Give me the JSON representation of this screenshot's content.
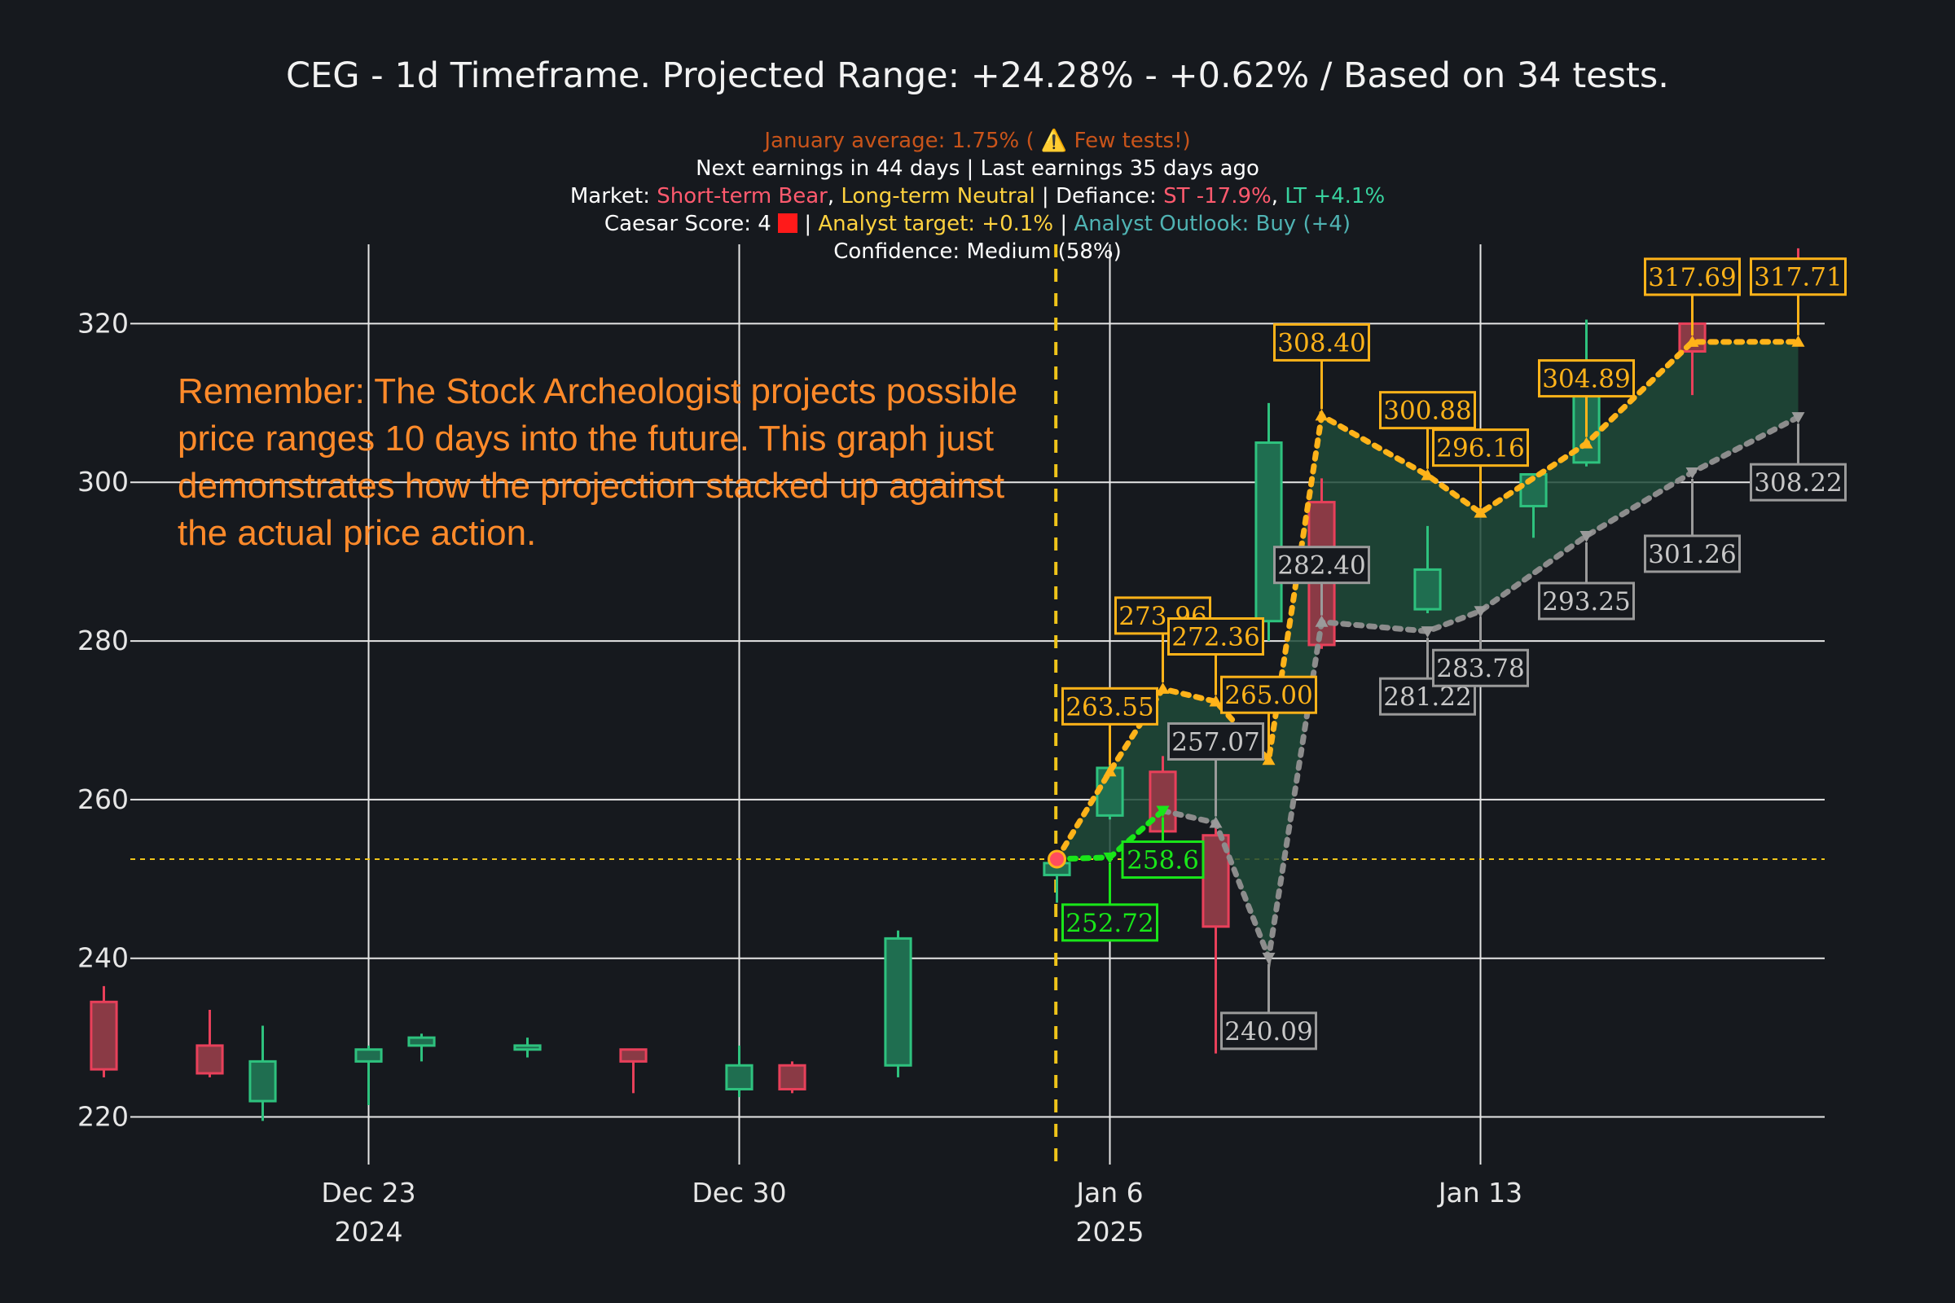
{
  "title": "CEG - 1d Timeframe. Projected Range: +24.28% - +0.62% / Based on 34 tests.",
  "subtitle": {
    "line1": {
      "text": "January average: 1.75% ( ⚠️ Few tests!)",
      "color": "#c9541a"
    },
    "line2": "Next earnings in 44 days | Last earnings 35 days ago",
    "line3": {
      "label": "Market: ",
      "short_term": "Short-term Bear",
      "sep1": ", ",
      "long_term": "Long-term Neutral",
      "sep2": " | Defiance: ",
      "st": "ST -17.9%",
      "sep3": ", ",
      "lt": "LT +4.1%"
    },
    "line4": {
      "caesar": "Caesar Score: 4",
      "sep1": " | ",
      "analyst_target": "Analyst target: +0.1%",
      "sep2": " | ",
      "analyst_outlook": "Analyst Outlook: Buy (+4)"
    },
    "line5": "Confidence: Medium (58%)"
  },
  "note": "Remember: The Stock Archeologist projects possible price ranges 10 days into the future. This graph just demonstrates how the projection stacked up against the actual price action.",
  "colors": {
    "background": "#16191e",
    "up": "#2ec27e",
    "up_fill": "#1f6e50",
    "down": "#e8405a",
    "down_fill": "#8a3a45",
    "upper_line": "#ffb319",
    "lower_line": "#8c8c8c",
    "base_line": "#19e619",
    "band_fill": "#1f4a38",
    "vline": "#f0c419",
    "bear": "#ff5a6e",
    "neutral": "#ffd23f",
    "st": "#ff5a6e",
    "lt": "#38d39f",
    "analyst_target": "#ffd23f",
    "analyst_outlook": "#4fb3b3"
  },
  "chart_data": {
    "type": "candlestick",
    "y_ticks": [
      "220",
      "240",
      "260",
      "280",
      "300",
      "320"
    ],
    "ylim": [
      214,
      330
    ],
    "x_ticks": [
      {
        "label": "Dec 23",
        "sub": "2024",
        "date": "2024-12-23"
      },
      {
        "label": "Dec 30",
        "sub": "",
        "date": "2024-12-30"
      },
      {
        "label": "Jan 6",
        "sub": "2025",
        "date": "2025-01-06"
      },
      {
        "label": "Jan 13",
        "sub": "",
        "date": "2025-01-13"
      }
    ],
    "xlim": [
      "2024-12-18T12:00",
      "2025-01-19T12:00"
    ],
    "current_price": 252.5,
    "projection_start": {
      "date": "2025-01-05",
      "price": 252.5
    },
    "candles": [
      {
        "date": "2024-12-18",
        "open": 234.5,
        "high": 236.5,
        "low": 225.0,
        "close": 226.0
      },
      {
        "date": "2024-12-20",
        "open": 229.0,
        "high": 233.5,
        "low": 225.0,
        "close": 225.5
      },
      {
        "date": "2024-12-21",
        "open": 222.0,
        "high": 231.5,
        "low": 219.5,
        "close": 227.0
      },
      {
        "date": "2024-12-23",
        "open": 227.0,
        "high": 229.0,
        "low": 221.5,
        "close": 228.5
      },
      {
        "date": "2024-12-24",
        "open": 229.0,
        "high": 230.5,
        "low": 227.0,
        "close": 230.0
      },
      {
        "date": "2024-12-26",
        "open": 228.5,
        "high": 230.0,
        "low": 227.5,
        "close": 229.0
      },
      {
        "date": "2024-12-28",
        "open": 228.5,
        "high": 228.5,
        "low": 223.0,
        "close": 227.0
      },
      {
        "date": "2024-12-30",
        "open": 223.5,
        "high": 229.0,
        "low": 222.5,
        "close": 226.5
      },
      {
        "date": "2024-12-31",
        "open": 226.5,
        "high": 227.0,
        "low": 223.0,
        "close": 223.5
      },
      {
        "date": "2025-01-02",
        "open": 226.5,
        "high": 243.5,
        "low": 225.0,
        "close": 242.5
      },
      {
        "date": "2025-01-05",
        "open": 250.5,
        "high": 253.0,
        "low": 247.0,
        "close": 252.0
      },
      {
        "date": "2025-01-06",
        "open": 258.0,
        "high": 264.5,
        "low": 257.5,
        "close": 264.0
      },
      {
        "date": "2025-01-07",
        "open": 263.5,
        "high": 265.5,
        "low": 255.0,
        "close": 256.0
      },
      {
        "date": "2025-01-08",
        "open": 255.5,
        "high": 256.5,
        "low": 228.0,
        "close": 244.0
      },
      {
        "date": "2025-01-09",
        "open": 282.5,
        "high": 310.0,
        "low": 280.0,
        "close": 305.0
      },
      {
        "date": "2025-01-10",
        "open": 297.5,
        "high": 300.5,
        "low": 279.0,
        "close": 279.5
      },
      {
        "date": "2025-01-12",
        "open": 284.0,
        "high": 294.5,
        "low": 283.5,
        "close": 289.0
      },
      {
        "date": "2025-01-14",
        "open": 297.0,
        "high": 301.0,
        "low": 293.0,
        "close": 301.0
      },
      {
        "date": "2025-01-15",
        "open": 302.5,
        "high": 320.5,
        "low": 302.0,
        "close": 312.0
      },
      {
        "date": "2025-01-17",
        "open": 320.0,
        "high": 320.5,
        "low": 311.0,
        "close": 316.5
      },
      {
        "date": "2025-01-19",
        "open": 324.5,
        "high": 329.5,
        "low": 323.5,
        "close": 324.0
      }
    ],
    "upper_projection": [
      {
        "date": "2025-01-05",
        "value": 252.5
      },
      {
        "date": "2025-01-06",
        "value": 263.55,
        "label": "263.55"
      },
      {
        "date": "2025-01-07",
        "value": 273.96,
        "label": "273.96"
      },
      {
        "date": "2025-01-08",
        "value": 272.36,
        "label": "272.36"
      },
      {
        "date": "2025-01-09",
        "value": 265.0,
        "label": "265.00"
      },
      {
        "date": "2025-01-10",
        "value": 308.4,
        "label": "308.40"
      },
      {
        "date": "2025-01-12",
        "value": 300.88,
        "label": "300.88"
      },
      {
        "date": "2025-01-13",
        "value": 296.16,
        "label": "296.16"
      },
      {
        "date": "2025-01-15",
        "value": 304.89,
        "label": "304.89"
      },
      {
        "date": "2025-01-17",
        "value": 317.69,
        "label": "317.69"
      },
      {
        "date": "2025-01-19",
        "value": 317.71,
        "label": "317.71"
      }
    ],
    "lower_projection": [
      {
        "date": "2025-01-05",
        "value": 252.5
      },
      {
        "date": "2025-01-06",
        "value": 252.72,
        "label": "252.72"
      },
      {
        "date": "2025-01-07",
        "value": 258.6,
        "label": "258.6"
      },
      {
        "date": "2025-01-08",
        "value": 257.07,
        "label": "257.07"
      },
      {
        "date": "2025-01-09",
        "value": 240.09,
        "label": "240.09"
      },
      {
        "date": "2025-01-10",
        "value": 282.4,
        "label": "282.40"
      },
      {
        "date": "2025-01-12",
        "value": 281.22,
        "label": "281.22"
      },
      {
        "date": "2025-01-13",
        "value": 283.78,
        "label": "283.78"
      },
      {
        "date": "2025-01-15",
        "value": 293.25,
        "label": "293.25"
      },
      {
        "date": "2025-01-17",
        "value": 301.26,
        "label": "301.26"
      },
      {
        "date": "2025-01-19",
        "value": 308.22,
        "label": "308.22"
      }
    ]
  }
}
